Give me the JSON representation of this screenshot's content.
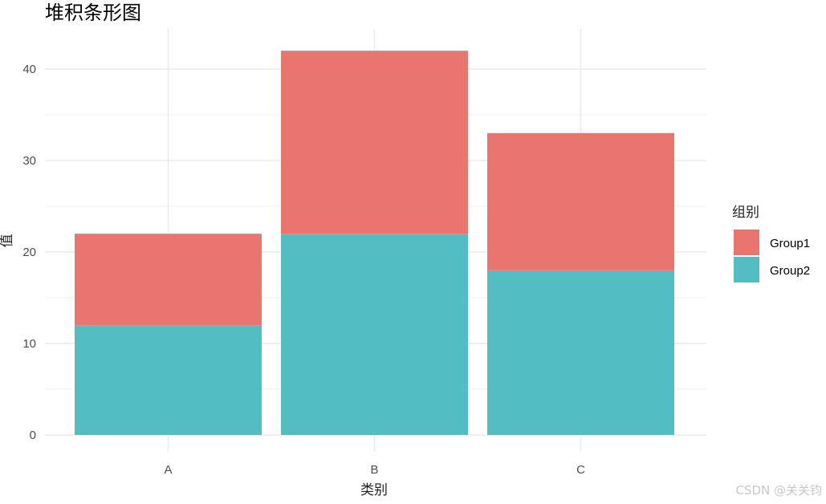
{
  "chart_data": {
    "type": "bar",
    "stacked": true,
    "title": "堆积条形图",
    "xlabel": "类别",
    "ylabel": "值",
    "categories": [
      "A",
      "B",
      "C"
    ],
    "series": [
      {
        "name": "Group1",
        "values": [
          10,
          20,
          15
        ],
        "color": "#E9756F"
      },
      {
        "name": "Group2",
        "values": [
          12,
          22,
          18
        ],
        "color": "#52BEC3"
      }
    ],
    "ylim": [
      0,
      44
    ],
    "yticks": [
      0,
      10,
      20,
      30,
      40
    ],
    "grid": true,
    "legend": {
      "title": "组别",
      "placement": "right"
    }
  },
  "watermark": "CSDN @关关钧"
}
